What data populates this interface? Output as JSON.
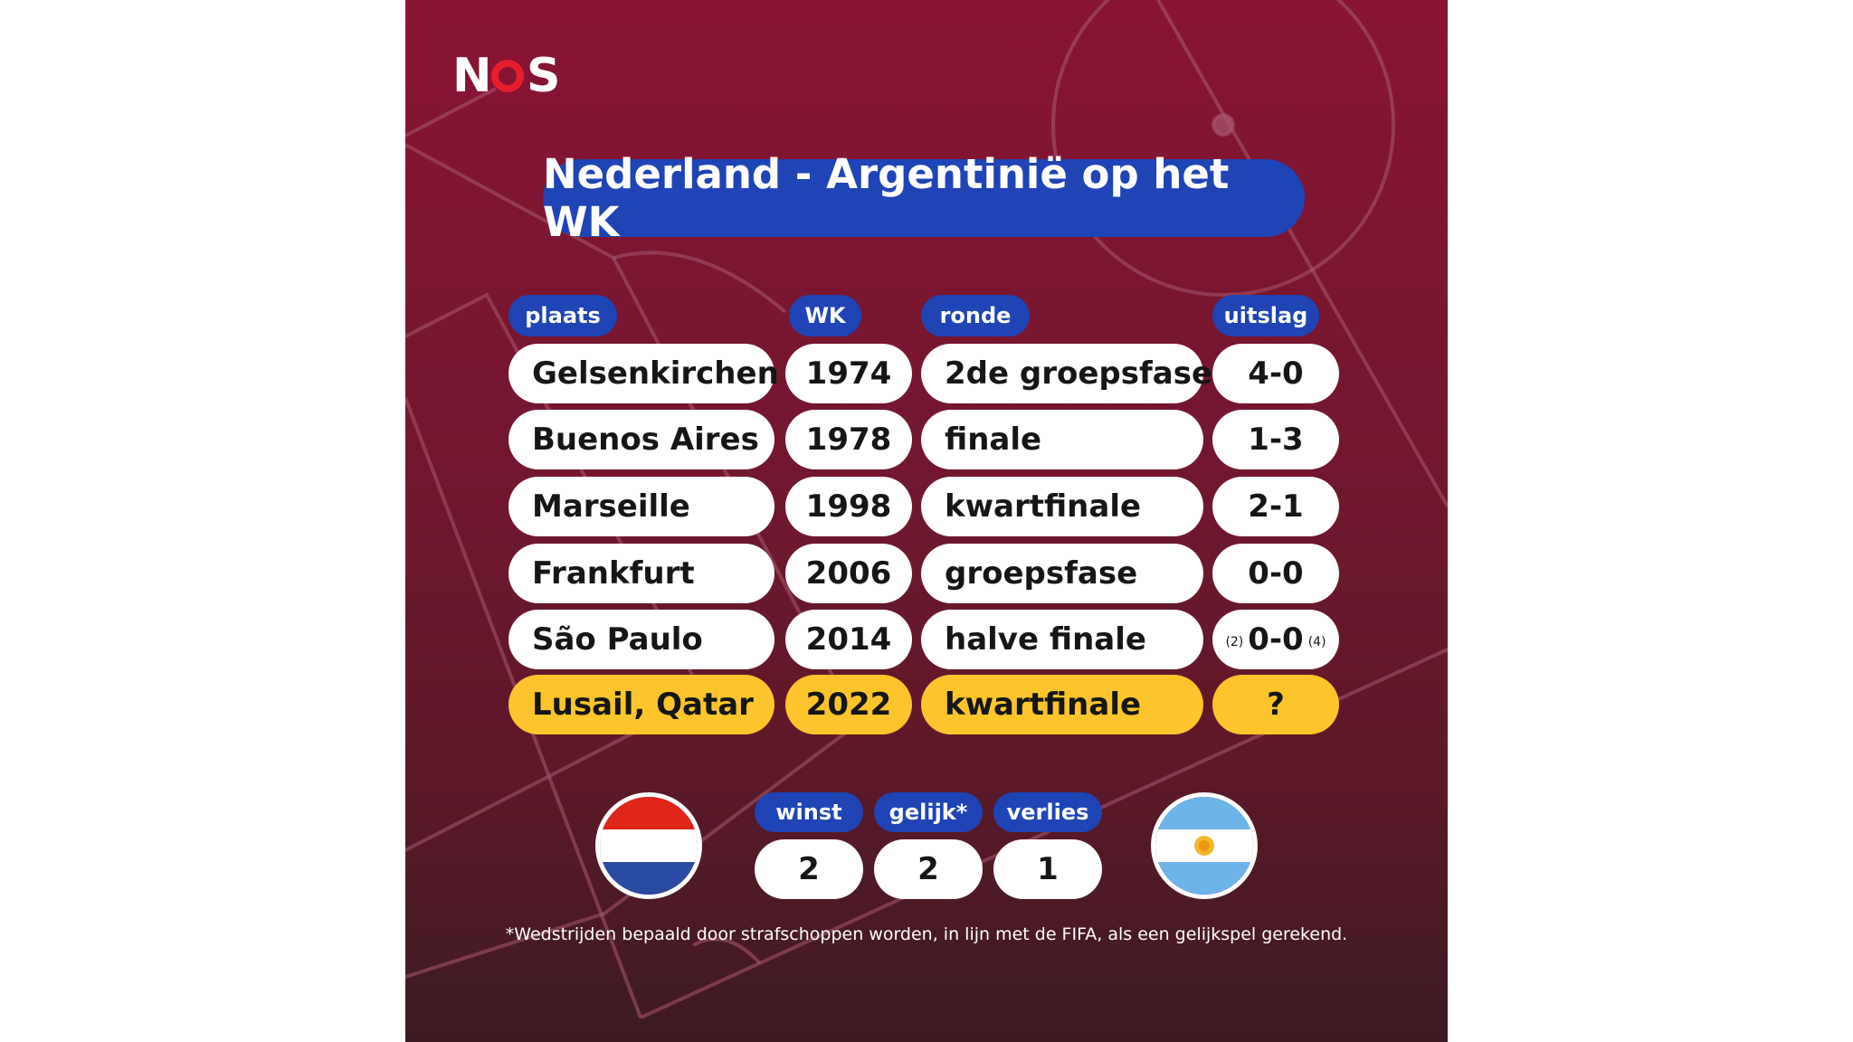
{
  "brand": {
    "logo_text": "NOS",
    "logo_left": "N",
    "logo_right": "S"
  },
  "title": "Nederland - Argentinië op het WK",
  "table": {
    "headers": {
      "place": "plaats",
      "year": "WK",
      "round": "ronde",
      "result": "uitslag"
    },
    "rows": [
      {
        "place": "Gelsenkirchen",
        "year": "1974",
        "round": "2de groepsfase",
        "result": "4-0"
      },
      {
        "place": "Buenos Aires",
        "year": "1978",
        "round": "finale",
        "result": "1-3"
      },
      {
        "place": "Marseille",
        "year": "1998",
        "round": "kwartfinale",
        "result": "2-1"
      },
      {
        "place": "Frankfurt",
        "year": "2006",
        "round": "groepsfase",
        "result": "0-0"
      },
      {
        "place": "São Paulo",
        "year": "2014",
        "round": "halve finale",
        "result": "0-0",
        "pen_left": "(2)",
        "pen_right": "(4)"
      },
      {
        "place": "Lusail, Qatar",
        "year": "2022",
        "round": "kwartfinale",
        "result": "?",
        "highlight": true
      }
    ]
  },
  "summary": {
    "win_label": "winst",
    "draw_label": "gelijk*",
    "loss_label": "verlies",
    "win": "2",
    "draw": "2",
    "loss": "1"
  },
  "flags": {
    "left": "netherlands-flag",
    "right": "argentina-flag"
  },
  "colors": {
    "pill_blue": "#1e44b5",
    "highlight_yellow": "#fdc52b",
    "background_top": "#8a1433",
    "brand_red": "#e61e2b"
  },
  "footnote": "*Wedstrijden bepaald door strafschoppen worden, in lijn met de FIFA, als een gelijkspel gerekend."
}
